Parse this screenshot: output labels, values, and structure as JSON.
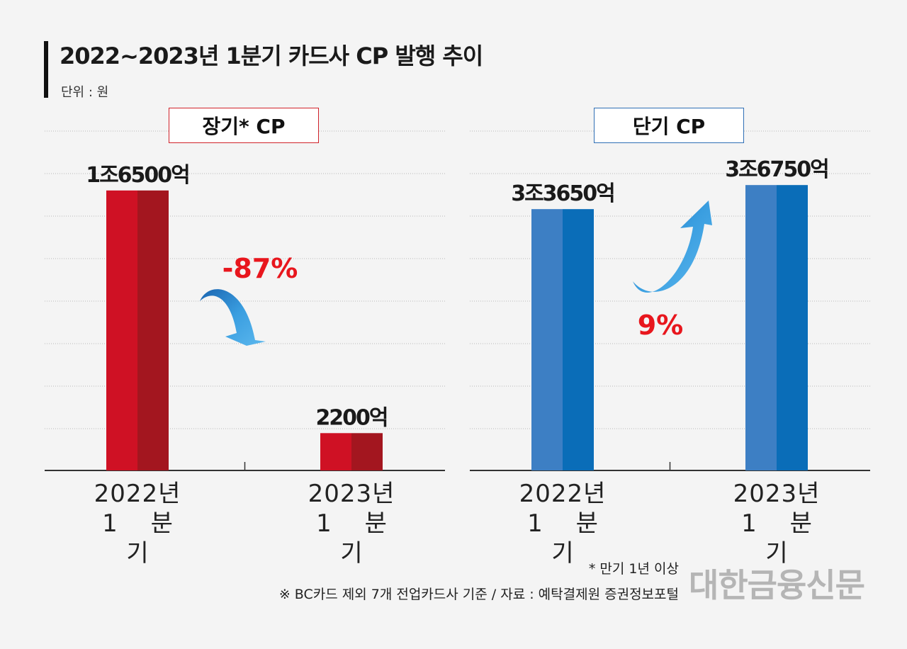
{
  "title": "2022~2023년 1분기 카드사 CP 발행 추이",
  "unit": "단위 : 원",
  "chart_data": [
    {
      "type": "bar",
      "title": "장기* CP",
      "categories": [
        "2022년 1분기",
        "2023년 1분기"
      ],
      "category_lines": [
        [
          "2022년",
          "1 분 기"
        ],
        [
          "2023년",
          "1 분 기"
        ]
      ],
      "values": [
        16500,
        2200
      ],
      "value_unit": "억원",
      "data_labels": [
        "1조6500억",
        "2200억"
      ],
      "change_label": "-87%",
      "change_direction": "down",
      "ylim": [
        0,
        20000
      ],
      "grid": true,
      "colors": {
        "light": "#cf1124",
        "dark": "#a3161f",
        "frame": "#d0222a"
      }
    },
    {
      "type": "bar",
      "title": "단기 CP",
      "categories": [
        "2022년 1분기",
        "2023년 1분기"
      ],
      "category_lines": [
        [
          "2022년",
          "1 분 기"
        ],
        [
          "2023년",
          "1 분 기"
        ]
      ],
      "values": [
        33650,
        36750
      ],
      "value_unit": "억원",
      "data_labels": [
        "3조3650억",
        "3조6750억"
      ],
      "change_label": "9%",
      "change_direction": "up",
      "ylim": [
        0,
        43700
      ],
      "grid": true,
      "colors": {
        "light": "#3d7fc4",
        "dark": "#0a6db8",
        "frame": "#2f6fb5"
      }
    }
  ],
  "footnotes": [
    "* 만기 1년 이상",
    "※ BC카드 제외 7개 전업카드사 기준 / 자료 : 예탁결제원 증권정보포털"
  ],
  "logo": "대한금융신문",
  "accent_red": "#e8161d"
}
